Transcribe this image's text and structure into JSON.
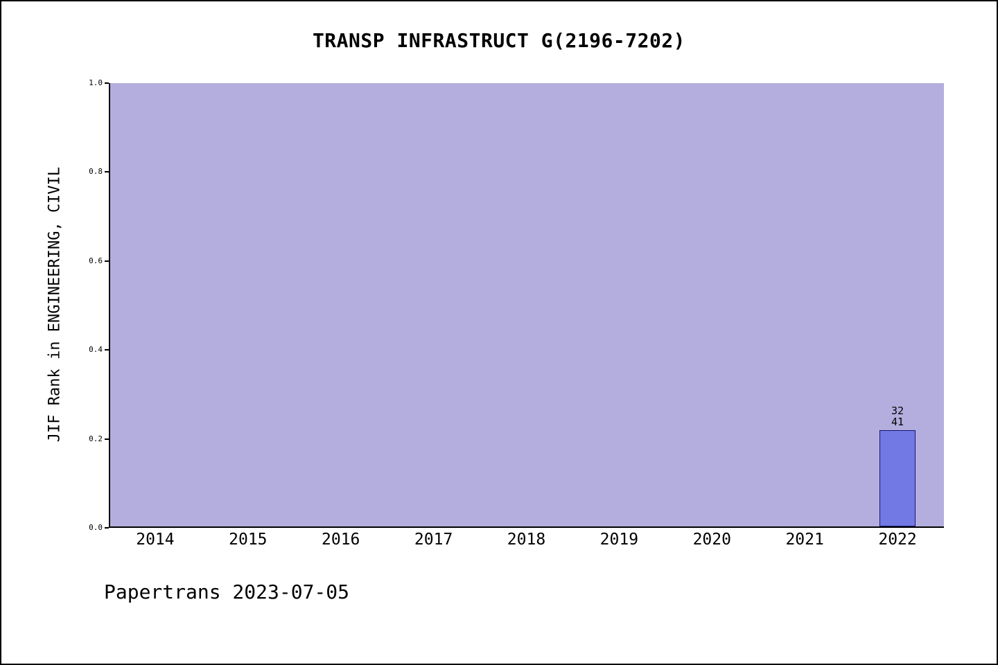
{
  "footer": {
    "text": "Papertrans 2023-07-05"
  },
  "chart_data": {
    "type": "bar",
    "title": "TRANSP INFRASTRUCT G(2196-7202)",
    "ylabel": "JIF Rank in ENGINEERING, CIVIL",
    "xlabel": "",
    "categories": [
      "2014",
      "2015",
      "2016",
      "2017",
      "2018",
      "2019",
      "2020",
      "2021",
      "2022"
    ],
    "values": [
      null,
      null,
      null,
      null,
      null,
      null,
      null,
      null,
      0.22
    ],
    "yticks": [
      0.0,
      0.2,
      0.4,
      0.6,
      0.8,
      1.0
    ],
    "ylim": [
      0,
      1
    ],
    "grid": false,
    "legend": "none",
    "bar_annotations": [
      {
        "category": "2022",
        "lines": [
          "32",
          "41"
        ]
      }
    ],
    "colors": {
      "plot_bg": "#b3aedd",
      "bar_fill": "#7278e4",
      "bar_edge": "#16166b",
      "text": "#000000"
    }
  }
}
